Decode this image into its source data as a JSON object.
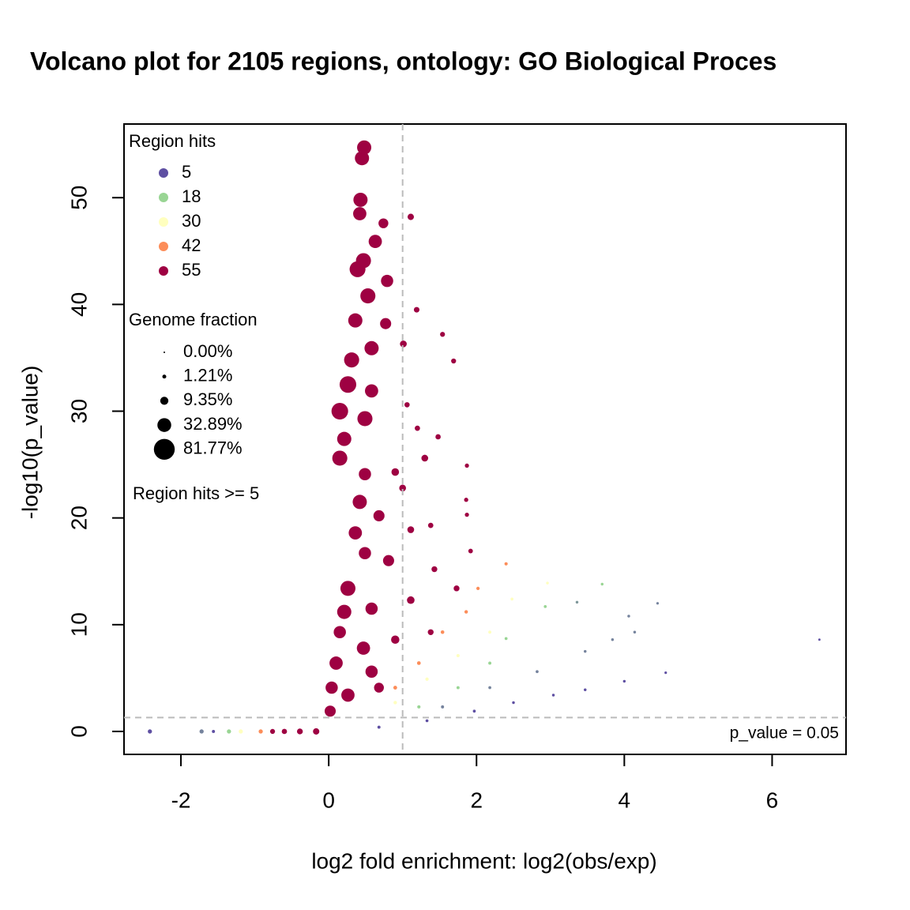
{
  "chart_data": {
    "type": "scatter",
    "title": "Volcano plot for 2105 regions, ontology: GO Biological Proces",
    "x_label": "log2 fold enrichment: log2(obs/exp)",
    "y_label": "-log10(p_value)",
    "xlim": [
      -2.77,
      7.0
    ],
    "ylim": [
      -2.15,
      56.9
    ],
    "xticks": [
      -2,
      0,
      2,
      4,
      6
    ],
    "yticks": [
      0,
      10,
      20,
      30,
      40,
      50
    ],
    "vline": 1,
    "hline": 1.301,
    "line_color": "#bbbbbb",
    "hline_label": "p_value = 0.05",
    "filter_note": "Region hits >= 5",
    "color_legend": {
      "title": "Region hits",
      "values": [
        5,
        18,
        30,
        42,
        55
      ],
      "colors": [
        "#5e4fa2",
        "#99d594",
        "#ffffbf",
        "#fc8d59",
        "#9e0142"
      ]
    },
    "size_legend": {
      "title": "Genome fraction",
      "values": [
        0,
        1.21,
        9.35,
        32.89,
        81.77
      ],
      "labels": [
        "0.00%",
        "1.21%",
        "9.35%",
        "32.89%",
        "81.77%"
      ]
    },
    "points": {
      "x": [
        6.64,
        4.56,
        4.0,
        3.47,
        3.04,
        2.5,
        1.97,
        1.33,
        0.68,
        4.45,
        3.84,
        3.47,
        2.82,
        2.18,
        1.54,
        4.14,
        4.06,
        3.36,
        3.7,
        2.93,
        2.4,
        2.18,
        1.75,
        1.22,
        2.96,
        2.48,
        2.18,
        1.75,
        1.33,
        0.9,
        2.4,
        2.02,
        1.86,
        1.54,
        1.22,
        0.9,
        -2.42,
        -1.72,
        -1.56,
        -1.35,
        -1.19,
        -0.92,
        -0.76,
        -0.6,
        -0.39,
        -0.17,
        0.02,
        0.26,
        0.68,
        0.04,
        0.58,
        0.1,
        1.38,
        0.9,
        0.47,
        0.15,
        1.73,
        1.11,
        0.58,
        0.21,
        1.43,
        0.26,
        0.81,
        1.92,
        0.49,
        1.38,
        1.11,
        0.36,
        1.87,
        1.86,
        0.68,
        1.0,
        0.42,
        0.9,
        0.49,
        1.87,
        1.3,
        0.15,
        1.48,
        1.2,
        0.21,
        1.06,
        0.49,
        0.15,
        0.58,
        0.26,
        1.69,
        1.54,
        0.31,
        1.01,
        0.58,
        0.77,
        0.36,
        1.19,
        0.53,
        0.79,
        0.39,
        0.47,
        0.63,
        1.11,
        0.74,
        0.42,
        0.43,
        0.45,
        0.48
      ],
      "y": [
        8.6,
        5.5,
        4.7,
        3.9,
        3.4,
        2.7,
        1.9,
        1.0,
        0.4,
        12.0,
        8.6,
        7.5,
        5.6,
        4.1,
        2.3,
        9.3,
        10.8,
        12.1,
        13.8,
        11.7,
        8.7,
        6.4,
        4.1,
        2.3,
        13.9,
        12.4,
        9.3,
        7.1,
        4.9,
        2.7,
        15.7,
        13.4,
        11.2,
        9.3,
        6.4,
        4.1,
        0,
        0,
        0,
        0,
        0,
        0,
        0,
        0,
        0,
        0,
        1.9,
        3.4,
        4.1,
        4.1,
        5.6,
        6.4,
        9.3,
        8.6,
        7.8,
        9.3,
        13.4,
        12.3,
        11.5,
        11.2,
        15.2,
        13.4,
        16.0,
        16.9,
        16.7,
        19.3,
        18.9,
        18.6,
        20.3,
        21.7,
        20.2,
        22.8,
        21.5,
        24.3,
        24.1,
        24.9,
        25.6,
        25.6,
        27.6,
        28.4,
        27.4,
        30.6,
        29.3,
        30.0,
        31.9,
        32.5,
        34.7,
        37.2,
        34.8,
        36.3,
        35.9,
        38.2,
        38.5,
        39.5,
        40.8,
        42.2,
        43.3,
        44.1,
        45.9,
        48.2,
        47.6,
        48.5,
        49.8,
        53.7,
        54.7
      ],
      "region_hits": [
        5,
        5,
        5,
        5,
        5,
        5,
        5,
        5,
        5,
        10,
        10,
        10,
        10,
        10,
        10,
        10,
        10,
        12,
        18,
        18,
        18,
        18,
        18,
        18,
        30,
        30,
        30,
        30,
        30,
        30,
        42,
        42,
        42,
        42,
        42,
        42,
        5,
        10,
        5,
        18,
        30,
        42,
        60,
        60,
        60,
        60,
        60,
        60,
        60,
        60,
        60,
        60,
        60,
        60,
        60,
        60,
        60,
        60,
        60,
        60,
        60,
        60,
        60,
        60,
        60,
        60,
        60,
        60,
        60,
        60,
        60,
        60,
        60,
        60,
        60,
        60,
        60,
        60,
        60,
        60,
        60,
        60,
        60,
        60,
        60,
        60,
        60,
        60,
        60,
        60,
        60,
        60,
        60,
        60,
        60,
        60,
        60,
        60,
        60,
        60,
        60,
        60,
        60,
        60,
        60
      ],
      "genome_fraction": [
        0.1,
        0.2,
        0.3,
        0.3,
        0.3,
        0.3,
        0.4,
        0.4,
        0.5,
        0.2,
        0.3,
        0.3,
        0.4,
        0.4,
        0.5,
        0.3,
        0.3,
        0.3,
        0.3,
        0.4,
        0.4,
        0.5,
        0.5,
        0.6,
        0.3,
        0.4,
        0.5,
        0.6,
        0.7,
        0.8,
        0.6,
        0.7,
        0.8,
        0.9,
        1.0,
        1.1,
        1.5,
        1.5,
        0.5,
        1.5,
        1.5,
        1.5,
        2.5,
        3.0,
        4.0,
        5.0,
        20.0,
        30.0,
        15.0,
        25.0,
        25.0,
        30.0,
        4.0,
        10.0,
        30.0,
        25.0,
        4.0,
        8.0,
        25.0,
        35.0,
        4.0,
        40.0,
        20.0,
        2.0,
        25.0,
        3.0,
        6.0,
        30.0,
        1.5,
        1.5,
        20.0,
        6.0,
        35.0,
        8.0,
        25.0,
        1.5,
        6.0,
        40.0,
        3.0,
        3.0,
        35.0,
        3.0,
        40.0,
        50.0,
        30.0,
        50.0,
        2.5,
        2.5,
        40.0,
        6.0,
        35.0,
        20.0,
        35.0,
        3.5,
        40.0,
        25.0,
        45.0,
        40.0,
        30.0,
        5.0,
        15.0,
        30.0,
        35.0,
        35.0,
        35.0
      ]
    }
  }
}
